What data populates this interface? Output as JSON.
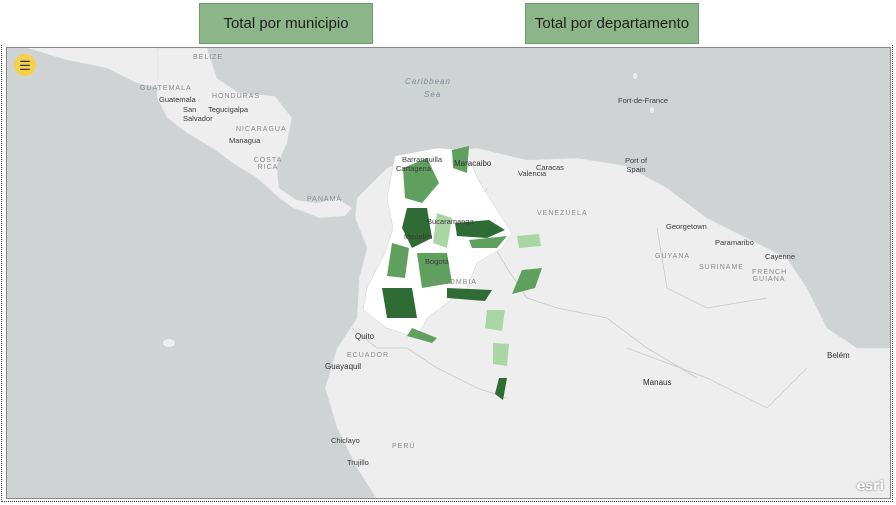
{
  "tabs": {
    "municipio": "Total por municipio",
    "departamento": "Total por departamento"
  },
  "map": {
    "menu_icon": "hamburger-icon",
    "sea_labels": [
      "Caribbean",
      "Sea"
    ],
    "country_labels": [
      "BELIZE",
      "GUATEMALA",
      "HONDURAS",
      "NICARAGUA",
      "COSTA RICA",
      "PANAMÁ",
      "VENEZUELA",
      "COLOMBIA",
      "ECUADOR",
      "PERÚ",
      "GUYANA",
      "SURINAME",
      "FRENCH GUIANA"
    ],
    "cities": [
      "Guatemala",
      "Tegucigalpa",
      "San Salvador",
      "Managua",
      "Fort-de-France",
      "Barranquilla",
      "Cartagena",
      "Maracaibo",
      "Caracas",
      "Valencia",
      "Port of Spain",
      "Bucaramanga",
      "Medellín",
      "Bogotá",
      "Georgetown",
      "Paramaribo",
      "Cayenne",
      "Quito",
      "Guayaquil",
      "Chiclayo",
      "Trujillo",
      "Manaus",
      "Belém"
    ],
    "attribution": "esri",
    "colors": {
      "water": "#cfd3d4",
      "land": "#eeeeee",
      "choropleth_dark": "#2f6b34",
      "choropleth_mid": "#5fa05f",
      "choropleth_light": "#a9d6a4",
      "tab_bg": "#8db58a"
    }
  }
}
